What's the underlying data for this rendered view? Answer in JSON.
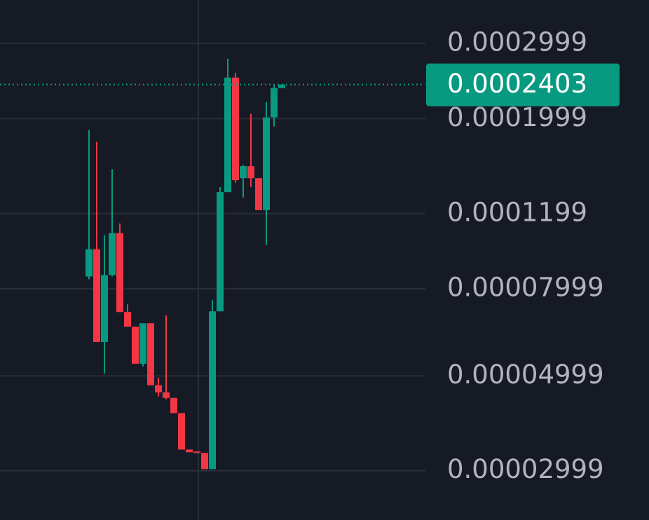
{
  "chart_data": {
    "type": "candlestick",
    "log_scale": true,
    "grid": true,
    "up_color": "#089981",
    "down_color": "#f23645",
    "ylim": [
      2.3e-05,
      0.000379
    ],
    "yticks": [
      2.999e-05,
      4.999e-05,
      7.999e-05,
      0.0001199,
      0.0001999,
      0.0002999
    ],
    "current_price": 0.0002403,
    "candles": [
      {
        "open": 8.544e-05,
        "high": 0.0001882,
        "low": 8.415e-05,
        "close": 9.894e-05
      },
      {
        "open": 9.894e-05,
        "high": 0.0001765,
        "low": 6.001e-05,
        "close": 6.001e-05
      },
      {
        "open": 6.001e-05,
        "high": 0.0001067,
        "low": 5.068e-05,
        "close": 8.61e-05
      },
      {
        "open": 8.61e-05,
        "high": 0.0001524,
        "low": 8.544e-05,
        "close": 0.0001079
      },
      {
        "open": 0.0001079,
        "high": 0.0001137,
        "low": 7.054e-05,
        "close": 7.054e-05
      },
      {
        "open": 7.054e-05,
        "high": 7.351e-05,
        "low": 6.517e-05,
        "close": 6.517e-05
      },
      {
        "open": 6.517e-05,
        "high": 6.517e-05,
        "low": 5.338e-05,
        "close": 5.338e-05
      },
      {
        "open": 5.338e-05,
        "high": 6.64e-05,
        "low": 5.26e-05,
        "close": 6.64e-05
      },
      {
        "open": 6.64e-05,
        "high": 6.64e-05,
        "low": 4.753e-05,
        "close": 4.753e-05
      },
      {
        "open": 4.753e-05,
        "high": 4.954e-05,
        "low": 4.474e-05,
        "close": 4.576e-05
      },
      {
        "open": 4.576e-05,
        "high": 6.922e-05,
        "low": 4.408e-05,
        "close": 4.441e-05
      },
      {
        "open": 4.441e-05,
        "high": 4.441e-05,
        "low": 4.091e-05,
        "close": 4.091e-05
      },
      {
        "open": 4.091e-05,
        "high": 4.091e-05,
        "low": 3.362e-05,
        "close": 3.362e-05
      },
      {
        "open": 3.362e-05,
        "high": 3.362e-05,
        "low": 3.314e-05,
        "close": 3.314e-05
      },
      {
        "open": 3.326e-05,
        "high": 3.326e-05,
        "low": 3.302e-05,
        "close": 3.302e-05
      },
      {
        "open": 3.302e-05,
        "high": 3.302e-05,
        "low": 3.026e-05,
        "close": 3.026e-05
      },
      {
        "open": 3.026e-05,
        "high": 7.518e-05,
        "low": 3.026e-05,
        "close": 7.081e-05
      },
      {
        "open": 7.081e-05,
        "high": 0.0001383,
        "low": 7.081e-05,
        "close": 0.0001346
      },
      {
        "open": 0.0001346,
        "high": 0.0002761,
        "low": 0.0001346,
        "close": 0.0002495
      },
      {
        "open": 0.0002495,
        "high": 0.0002561,
        "low": 0.0001414,
        "close": 0.0001435
      },
      {
        "open": 0.0001451,
        "high": 0.0001559,
        "low": 0.0001307,
        "close": 0.0001548
      },
      {
        "open": 0.0001548,
        "high": 0.0002052,
        "low": 0.0001383,
        "close": 0.0001451
      },
      {
        "open": 0.0001451,
        "high": 0.0001451,
        "low": 0.0001221,
        "close": 0.0001221
      },
      {
        "open": 0.0001221,
        "high": 0.0002187,
        "low": 0.0001012,
        "close": 0.0002013
      },
      {
        "open": 0.0002013,
        "high": 0.0002393,
        "low": 0.0001917,
        "close": 0.0002358
      },
      {
        "open": 0.0002358,
        "high": 0.0002403,
        "low": 0.0002358,
        "close": 0.0002403
      }
    ]
  }
}
